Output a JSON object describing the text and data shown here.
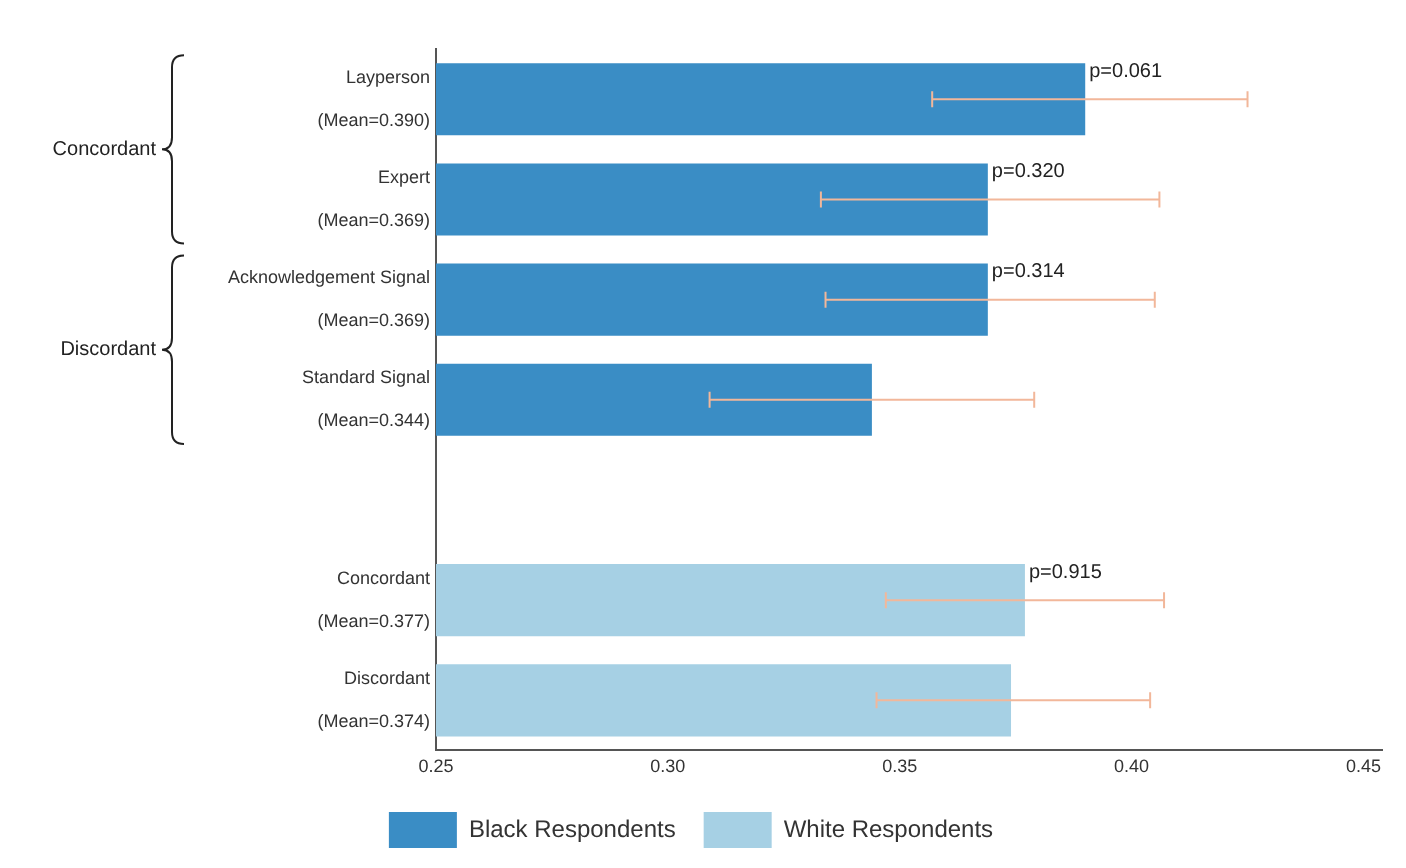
{
  "chart_data": {
    "type": "bar",
    "orientation": "horizontal",
    "categories": [
      "Layperson\n(Mean=0.390)",
      "Expert\n(Mean=0.369)",
      "Acknowledgement Signal\n(Mean=0.369)",
      "Standard Signal\n(Mean=0.344)",
      null,
      "Concordant\n(Mean=0.377)",
      "Discordant\n(Mean=0.374)"
    ],
    "series": [
      {
        "name": "Black Respondents",
        "color": "#3a8dc5",
        "values": [
          0.39,
          0.369,
          0.369,
          0.344,
          null,
          null,
          null
        ],
        "errors": [
          [
            0.357,
            0.425
          ],
          [
            0.333,
            0.406
          ],
          [
            0.334,
            0.405
          ],
          [
            0.309,
            0.379
          ],
          null,
          null,
          null
        ]
      },
      {
        "name": "White Respondents",
        "color": "#a6d0e4",
        "values": [
          null,
          null,
          null,
          null,
          null,
          0.377,
          0.374
        ],
        "errors": [
          null,
          null,
          null,
          null,
          null,
          [
            0.347,
            0.407
          ],
          [
            0.345,
            0.404
          ]
        ]
      }
    ],
    "xlim": [
      0.25,
      0.454
    ],
    "xticks": [
      {
        "value": 0.25,
        "label": "0.25"
      },
      {
        "value": 0.3,
        "label": "0.30"
      },
      {
        "value": 0.35,
        "label": "0.35"
      },
      {
        "value": 0.4,
        "label": "0.40"
      },
      {
        "value": 0.45,
        "label": "0.45"
      }
    ],
    "grid": false,
    "legend": "bottom",
    "annotations": [
      "Concordant",
      "Discordant",
      {
        "text": "p=0.061",
        "x": 0.39,
        "y": "Layperson\n(Mean=0.390)"
      },
      {
        "text": "p=0.320",
        "x": 0.369,
        "y": "Expert\n(Mean=0.369)"
      },
      {
        "text": "p=0.314",
        "x": 0.369,
        "y": "Acknowledgement Signal\n(Mean=0.369)"
      },
      {
        "text": "p=0.915",
        "x": 0.377,
        "y": "Concordant\n(Mean=0.377)"
      }
    ]
  }
}
